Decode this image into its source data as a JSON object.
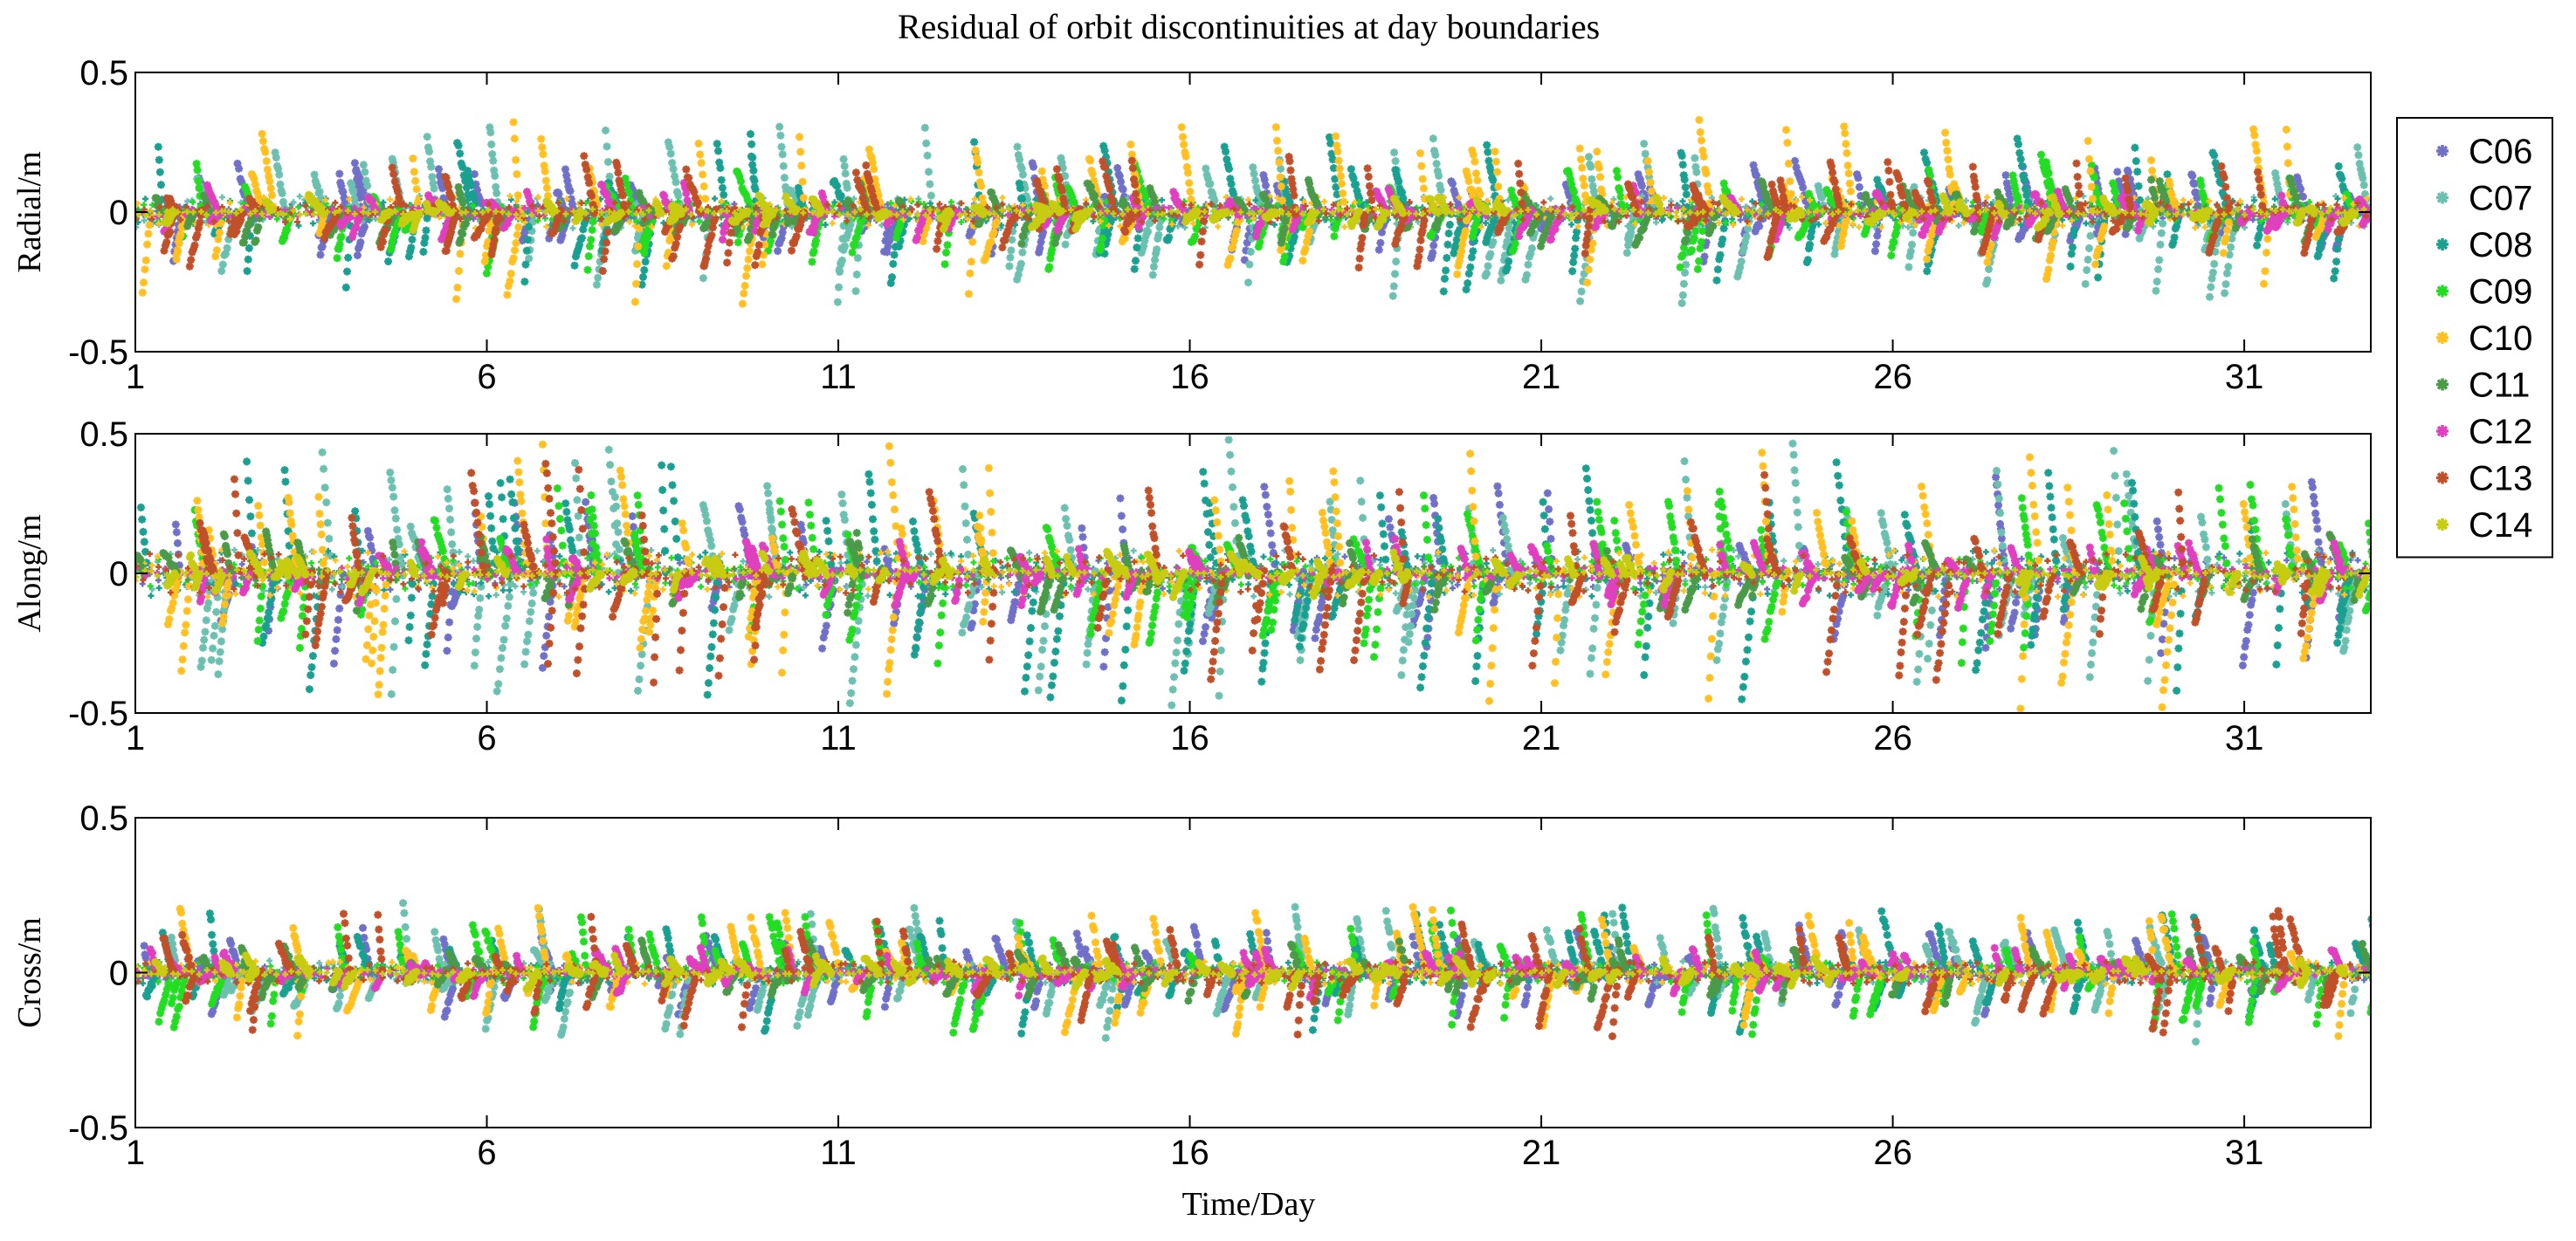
{
  "chart_data": {
    "type": "scatter",
    "title": "Residual of orbit discontinuities at day boundaries",
    "xlabel": "Time/Day",
    "xlim": [
      1,
      32.8
    ],
    "xticks": [
      1,
      6,
      11,
      16,
      21,
      26,
      31
    ],
    "xtick_labels": [
      "1",
      "6",
      "11",
      "16",
      "21",
      "26",
      "31"
    ],
    "ylim": [
      -0.5,
      0.5
    ],
    "yticks": [
      -0.5,
      0,
      0.5
    ],
    "ytick_labels": [
      "-0.5",
      "0",
      "0.5"
    ],
    "legend_position": "right",
    "series": [
      {
        "name": "C06",
        "color": "#7070c8"
      },
      {
        "name": "C07",
        "color": "#6cc0b0"
      },
      {
        "name": "C08",
        "color": "#1aa090"
      },
      {
        "name": "C09",
        "color": "#22dd22"
      },
      {
        "name": "C10",
        "color": "#ffc020"
      },
      {
        "name": "C11",
        "color": "#4a9a4a"
      },
      {
        "name": "C12",
        "color": "#e040c0"
      },
      {
        "name": "C13",
        "color": "#c0502a"
      },
      {
        "name": "C14",
        "color": "#c8cc10"
      }
    ],
    "panels": [
      {
        "ylabel": "Radial/m",
        "amplitudes": {
          "C06": 0.18,
          "C07": 0.33,
          "C08": 0.28,
          "C09": 0.22,
          "C10": 0.33,
          "C11": 0.12,
          "C12": 0.1,
          "C13": 0.21,
          "C14": 0.06
        }
      },
      {
        "ylabel": "Along/m",
        "amplitudes": {
          "C06": 0.35,
          "C07": 0.48,
          "C08": 0.47,
          "C09": 0.32,
          "C10": 0.48,
          "C11": 0.15,
          "C12": 0.12,
          "C13": 0.4,
          "C14": 0.08
        }
      },
      {
        "ylabel": "Cross/m",
        "amplitudes": {
          "C06": 0.15,
          "C07": 0.22,
          "C08": 0.2,
          "C09": 0.2,
          "C10": 0.21,
          "C11": 0.1,
          "C12": 0.08,
          "C13": 0.2,
          "C14": 0.05
        }
      }
    ],
    "marker": "star (+ with x)",
    "note": "Per-point residual values are too dense to read; series are characterized by their approximate peak amplitude (m) and rendered as ±amplitude oscillation bursts per panel."
  }
}
